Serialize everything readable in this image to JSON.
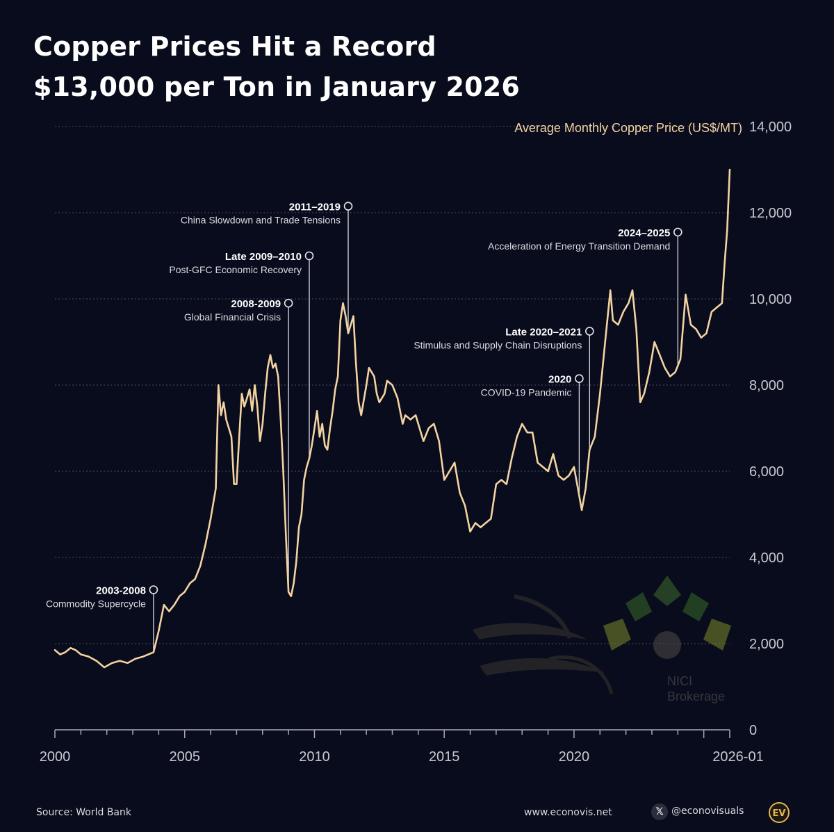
{
  "header": {
    "title_line1": "Copper Prices Hit a Record",
    "title_line2": "$13,000 per Ton in January 2026"
  },
  "footer": {
    "source": "Source: World Bank",
    "website": "www.econovis.net",
    "social_handle": "@econovisuals",
    "social_icon": "x-logo-icon",
    "brand_icon": "econovisuals-logo-icon",
    "brand_mark": "EV"
  },
  "watermark": {
    "brand": "NICI",
    "sub": "Brokerage",
    "color": "#4a7a3a"
  },
  "colors": {
    "background": "#090c1c",
    "line": "#f3d3a2",
    "grid": "#4a4e63",
    "axis_text": "#c9c9d2",
    "annotation_text": "#ffffff"
  },
  "chart_data": {
    "type": "line",
    "title": "Copper Prices Hit a Record $13,000 per Ton in January 2026",
    "ylabel": "Average Monthly Copper Price (US$/MT)",
    "xlabel": "",
    "ylim": [
      0,
      14000
    ],
    "xlim": [
      2000.0,
      2026.0
    ],
    "grid": true,
    "y_axis_side": "right",
    "yticks": [
      "0",
      "2,000",
      "4,000",
      "6,000",
      "8,000",
      "10,000",
      "12,000",
      "14,000"
    ],
    "ytick_values": [
      0,
      2000,
      4000,
      6000,
      8000,
      10000,
      12000,
      14000
    ],
    "xticks": [
      "2000",
      "2005",
      "2010",
      "2015",
      "2020",
      "2026-01"
    ],
    "xtick_values": [
      2000,
      2005,
      2010,
      2015,
      2020,
      2026.0
    ],
    "series": [
      {
        "values": [
          [
            2000.0,
            1850
          ],
          [
            2000.2,
            1750
          ],
          [
            2000.4,
            1800
          ],
          [
            2000.6,
            1900
          ],
          [
            2000.8,
            1850
          ],
          [
            2001.0,
            1750
          ],
          [
            2001.3,
            1700
          ],
          [
            2001.6,
            1600
          ],
          [
            2001.9,
            1450
          ],
          [
            2002.2,
            1550
          ],
          [
            2002.5,
            1600
          ],
          [
            2002.8,
            1550
          ],
          [
            2003.1,
            1650
          ],
          [
            2003.4,
            1700
          ],
          [
            2003.6,
            1750
          ],
          [
            2003.8,
            1800
          ],
          [
            2004.0,
            2300
          ],
          [
            2004.2,
            2900
          ],
          [
            2004.4,
            2750
          ],
          [
            2004.6,
            2900
          ],
          [
            2004.8,
            3100
          ],
          [
            2005.0,
            3200
          ],
          [
            2005.2,
            3400
          ],
          [
            2005.4,
            3500
          ],
          [
            2005.6,
            3800
          ],
          [
            2005.8,
            4300
          ],
          [
            2006.0,
            4900
          ],
          [
            2006.2,
            5600
          ],
          [
            2006.3,
            8000
          ],
          [
            2006.4,
            7300
          ],
          [
            2006.5,
            7600
          ],
          [
            2006.6,
            7200
          ],
          [
            2006.8,
            6800
          ],
          [
            2006.9,
            5700
          ],
          [
            2007.0,
            5700
          ],
          [
            2007.1,
            6800
          ],
          [
            2007.2,
            7800
          ],
          [
            2007.3,
            7500
          ],
          [
            2007.4,
            7700
          ],
          [
            2007.5,
            7900
          ],
          [
            2007.6,
            7400
          ],
          [
            2007.7,
            8000
          ],
          [
            2007.8,
            7500
          ],
          [
            2007.9,
            6700
          ],
          [
            2008.0,
            7100
          ],
          [
            2008.1,
            7800
          ],
          [
            2008.2,
            8400
          ],
          [
            2008.3,
            8700
          ],
          [
            2008.4,
            8400
          ],
          [
            2008.5,
            8500
          ],
          [
            2008.6,
            8200
          ],
          [
            2008.7,
            7200
          ],
          [
            2008.8,
            6000
          ],
          [
            2008.9,
            4500
          ],
          [
            2009.0,
            3200
          ],
          [
            2009.1,
            3100
          ],
          [
            2009.2,
            3400
          ],
          [
            2009.3,
            3900
          ],
          [
            2009.4,
            4700
          ],
          [
            2009.5,
            5000
          ],
          [
            2009.6,
            5800
          ],
          [
            2009.7,
            6100
          ],
          [
            2009.8,
            6300
          ],
          [
            2009.9,
            6600
          ],
          [
            2010.0,
            7000
          ],
          [
            2010.1,
            7400
          ],
          [
            2010.2,
            6800
          ],
          [
            2010.3,
            7100
          ],
          [
            2010.4,
            6600
          ],
          [
            2010.5,
            6500
          ],
          [
            2010.6,
            7000
          ],
          [
            2010.7,
            7400
          ],
          [
            2010.8,
            7900
          ],
          [
            2010.9,
            8200
          ],
          [
            2011.0,
            9500
          ],
          [
            2011.1,
            9900
          ],
          [
            2011.2,
            9600
          ],
          [
            2011.3,
            9200
          ],
          [
            2011.4,
            9400
          ],
          [
            2011.5,
            9600
          ],
          [
            2011.6,
            8500
          ],
          [
            2011.7,
            7600
          ],
          [
            2011.8,
            7300
          ],
          [
            2012.0,
            8000
          ],
          [
            2012.1,
            8400
          ],
          [
            2012.3,
            8200
          ],
          [
            2012.4,
            7800
          ],
          [
            2012.5,
            7600
          ],
          [
            2012.7,
            7800
          ],
          [
            2012.8,
            8100
          ],
          [
            2013.0,
            8000
          ],
          [
            2013.2,
            7700
          ],
          [
            2013.4,
            7100
          ],
          [
            2013.5,
            7300
          ],
          [
            2013.7,
            7200
          ],
          [
            2013.9,
            7300
          ],
          [
            2014.0,
            7100
          ],
          [
            2014.2,
            6700
          ],
          [
            2014.4,
            7000
          ],
          [
            2014.6,
            7100
          ],
          [
            2014.8,
            6700
          ],
          [
            2015.0,
            5800
          ],
          [
            2015.2,
            6000
          ],
          [
            2015.4,
            6200
          ],
          [
            2015.6,
            5500
          ],
          [
            2015.8,
            5200
          ],
          [
            2016.0,
            4600
          ],
          [
            2016.2,
            4800
          ],
          [
            2016.4,
            4700
          ],
          [
            2016.6,
            4800
          ],
          [
            2016.8,
            4900
          ],
          [
            2017.0,
            5700
          ],
          [
            2017.2,
            5800
          ],
          [
            2017.4,
            5700
          ],
          [
            2017.6,
            6300
          ],
          [
            2017.8,
            6800
          ],
          [
            2018.0,
            7100
          ],
          [
            2018.2,
            6900
          ],
          [
            2018.4,
            6900
          ],
          [
            2018.6,
            6200
          ],
          [
            2018.8,
            6100
          ],
          [
            2019.0,
            6000
          ],
          [
            2019.2,
            6400
          ],
          [
            2019.4,
            5900
          ],
          [
            2019.6,
            5800
          ],
          [
            2019.8,
            5900
          ],
          [
            2020.0,
            6100
          ],
          [
            2020.15,
            5600
          ],
          [
            2020.3,
            5100
          ],
          [
            2020.45,
            5600
          ],
          [
            2020.6,
            6500
          ],
          [
            2020.8,
            6800
          ],
          [
            2021.0,
            7800
          ],
          [
            2021.2,
            9000
          ],
          [
            2021.4,
            10200
          ],
          [
            2021.5,
            9500
          ],
          [
            2021.7,
            9400
          ],
          [
            2021.9,
            9700
          ],
          [
            2022.1,
            9900
          ],
          [
            2022.25,
            10200
          ],
          [
            2022.4,
            9300
          ],
          [
            2022.55,
            7600
          ],
          [
            2022.7,
            7800
          ],
          [
            2022.9,
            8300
          ],
          [
            2023.1,
            9000
          ],
          [
            2023.3,
            8700
          ],
          [
            2023.5,
            8400
          ],
          [
            2023.7,
            8200
          ],
          [
            2023.9,
            8300
          ],
          [
            2024.1,
            8600
          ],
          [
            2024.3,
            10100
          ],
          [
            2024.5,
            9400
          ],
          [
            2024.7,
            9300
          ],
          [
            2024.9,
            9100
          ],
          [
            2025.1,
            9200
          ],
          [
            2025.3,
            9700
          ],
          [
            2025.5,
            9800
          ],
          [
            2025.7,
            9900
          ],
          [
            2025.8,
            10800
          ],
          [
            2025.9,
            11600
          ],
          [
            2026.0,
            13000
          ]
        ]
      }
    ],
    "annotations": [
      {
        "period": "2003-2008",
        "text": "Commodity Supercycle",
        "x": 2003.8,
        "y": 3250
      },
      {
        "period": "2008-2009",
        "text": "Global Financial Crisis",
        "x": 2009.0,
        "y": 9900
      },
      {
        "period": "Late 2009–2010",
        "text": "Post-GFC Economic Recovery",
        "x": 2009.8,
        "y": 11000
      },
      {
        "period": "2011–2019",
        "text": "China Slowdown and Trade Tensions",
        "x": 2011.3,
        "y": 12150
      },
      {
        "period": "2020",
        "text": "COVID-19 Pandemic",
        "x": 2020.2,
        "y": 8150
      },
      {
        "period": "Late 2020–2021",
        "text": "Stimulus and Supply Chain Disruptions",
        "x": 2020.6,
        "y": 9250
      },
      {
        "period": "2024–2025",
        "text": "Acceleration of Energy Transition Demand",
        "x": 2024.0,
        "y": 11550
      }
    ]
  }
}
